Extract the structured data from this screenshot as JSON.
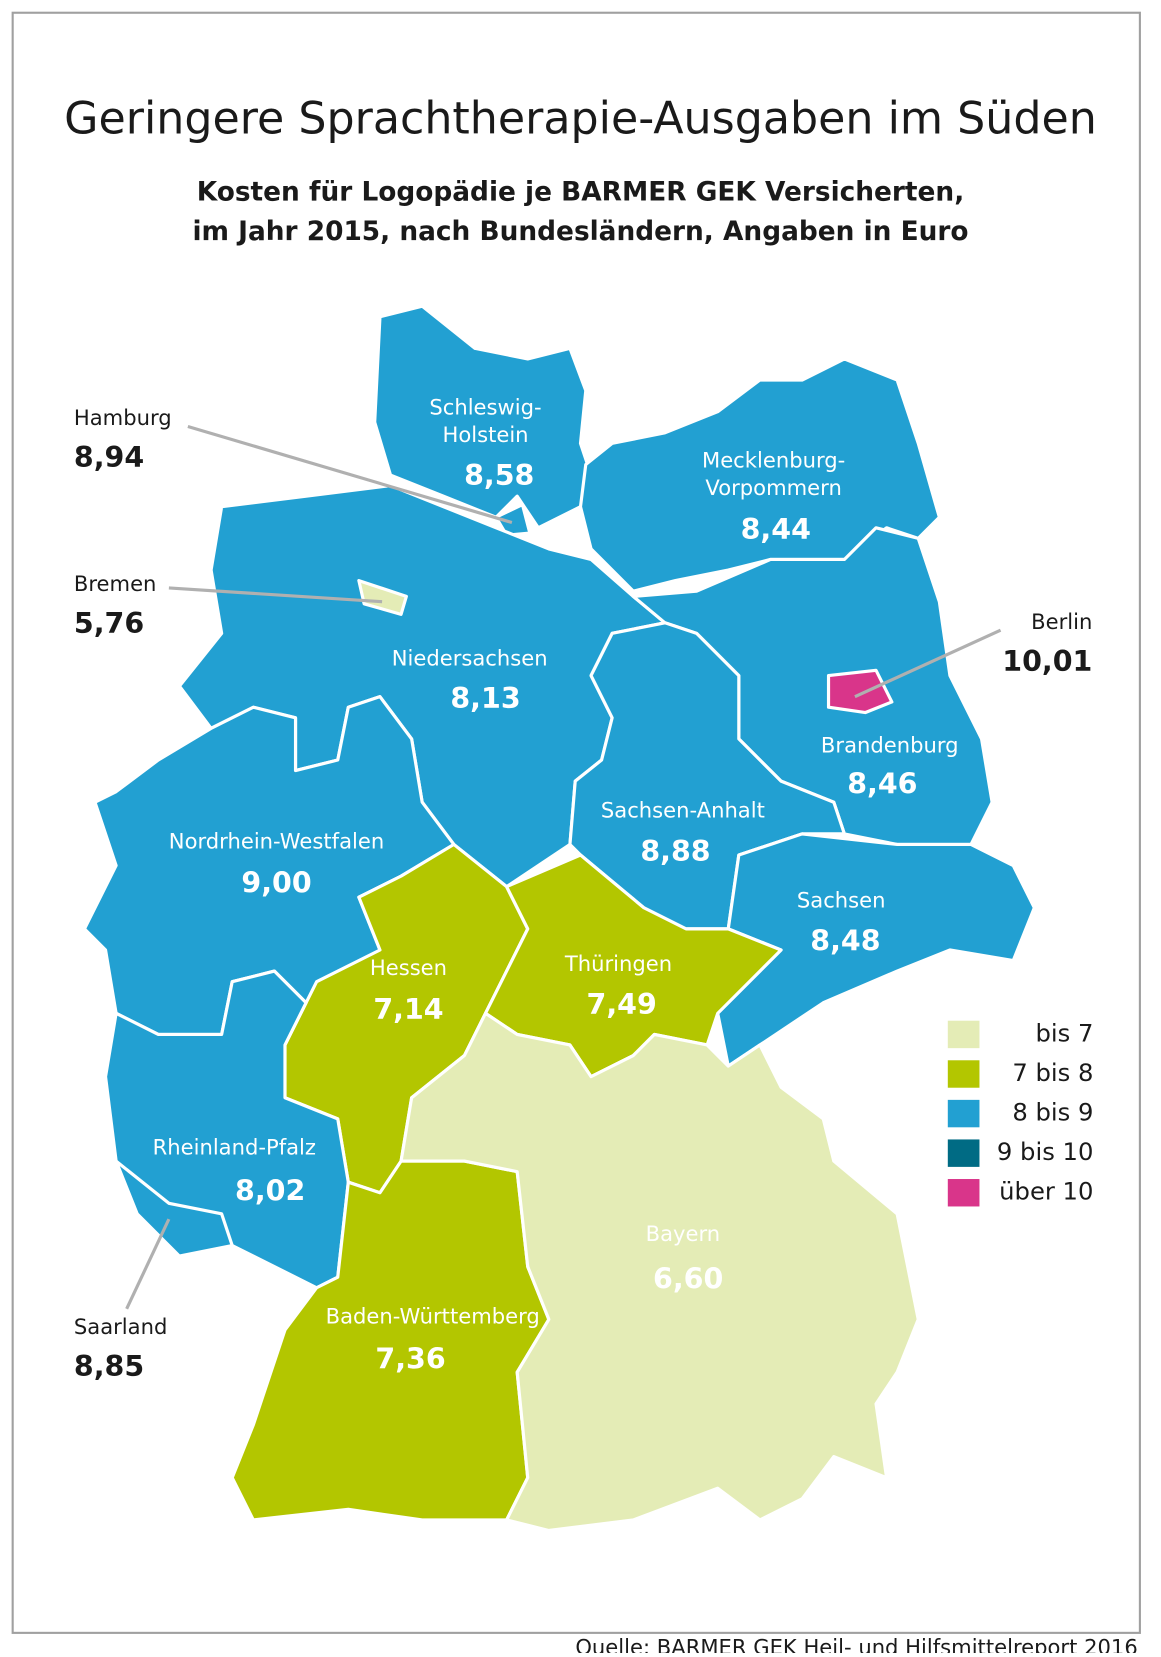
{
  "chart_data": {
    "type": "choropleth",
    "title": "Geringere Sprachtherapie-Ausgaben im Süden",
    "subtitle": [
      "Kosten für Logopädie je BARMER GEK Versicherten,",
      "im Jahr 2015, nach Bundesländern, Angaben in Euro"
    ],
    "regions": [
      [
        "Schleswig-",
        "Holstein"
      ],
      "Hamburg",
      [
        "Mecklenburg-",
        "Vorpommern"
      ],
      "Niedersachsen",
      "Bremen",
      "Brandenburg",
      "Berlin",
      "Sachsen-Anhalt",
      "Sachsen",
      "Nordrhein-Westfalen",
      "Hessen",
      "Thüringen",
      "Rheinland-Pfalz",
      "Saarland",
      "Baden-Württemberg",
      "Bayern"
    ],
    "values": [
      8.58,
      8.94,
      8.44,
      8.13,
      5.76,
      8.46,
      10.01,
      8.88,
      8.48,
      9.0,
      7.14,
      7.49,
      8.02,
      8.85,
      7.36,
      6.6
    ],
    "value_labels": [
      "8,58",
      "8,94",
      "8,44",
      "8,13",
      "5,76",
      "8,46",
      "10,01",
      "8,88",
      "8,48",
      "9,00",
      "7,14",
      "7,49",
      "8,02",
      "8,85",
      "7,36",
      "6,60"
    ],
    "legend": {
      "breaks": [
        7,
        8,
        9,
        10
      ],
      "labels": [
        "bis 7",
        "7 bis 8",
        "8 bis 9",
        "9 bis 10",
        "über 10"
      ],
      "colors": [
        "#e4ecb6",
        "#b3c600",
        "#22a0d2",
        "#006b84",
        "#d9358a"
      ]
    },
    "source": "Quelle: BARMER GEK Heil- und Hilfsmittelreport 2016"
  }
}
